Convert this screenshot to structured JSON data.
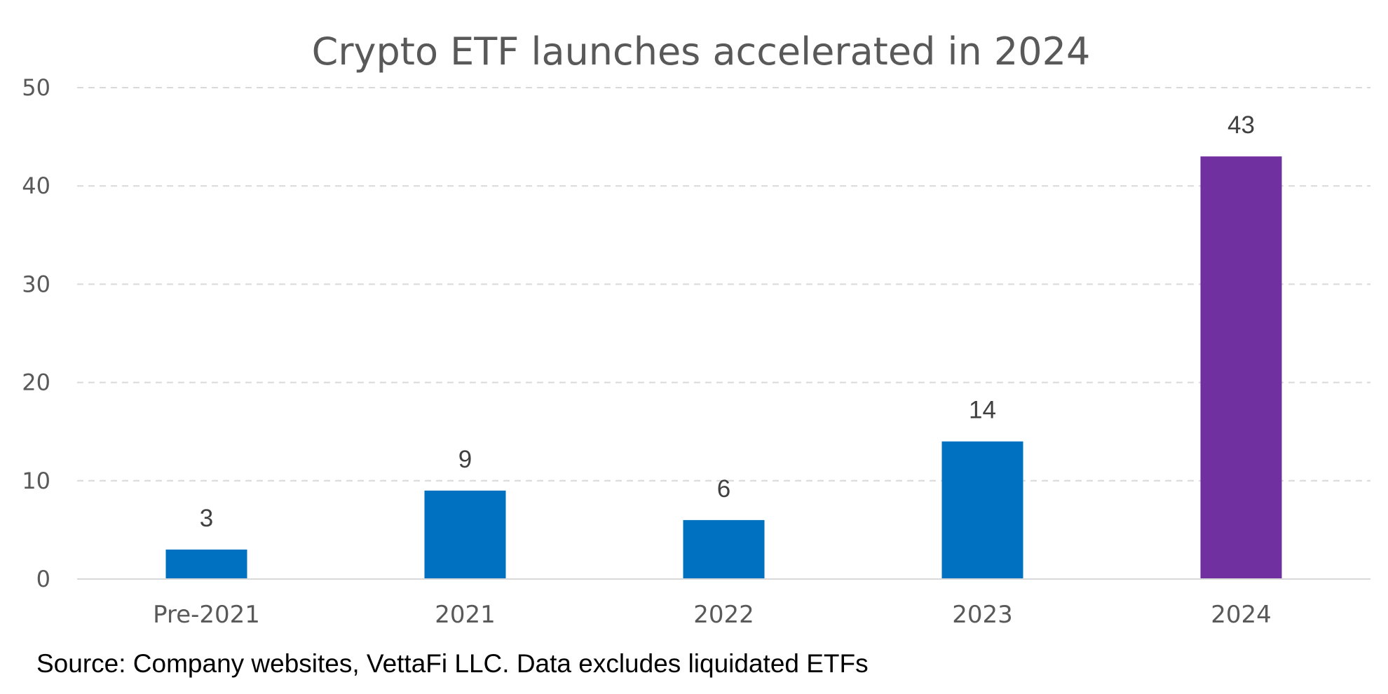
{
  "chart_data": {
    "type": "bar",
    "title": "Crypto ETF launches accelerated in 2024",
    "categories": [
      "Pre-2021",
      "2021",
      "2022",
      "2023",
      "2024"
    ],
    "values": [
      3,
      9,
      6,
      14,
      43
    ],
    "bar_colors": [
      "#0070C0",
      "#0070C0",
      "#0070C0",
      "#0070C0",
      "#7030A0"
    ],
    "xlabel": "",
    "ylabel": "",
    "ylim": [
      0,
      50
    ],
    "yticks": [
      0,
      10,
      20,
      30,
      40,
      50
    ],
    "grid": true,
    "gridline_color": "#D9D9D9",
    "axis_color": "#D9D9D9",
    "legend": "none",
    "data_labels": true
  },
  "source_note": "Source: Company websites, VettaFi LLC. Data excludes liquidated ETFs"
}
